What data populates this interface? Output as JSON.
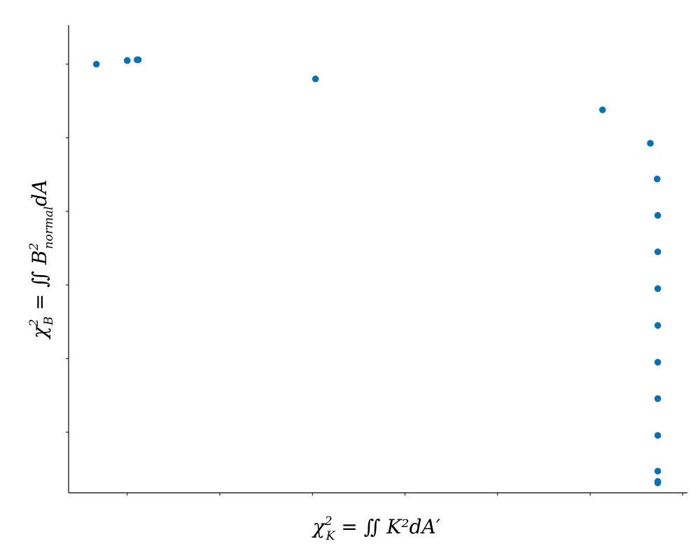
{
  "chart_data": {
    "type": "scatter",
    "title": "",
    "xlabel": "χ²_K = ∬ K² dA′",
    "ylabel": "χ²_B = ∬ B²_normal dA",
    "xlabel_parts": {
      "base": "χ",
      "sup": "2",
      "sub": "K",
      "rest": " = ∬ K²dA′"
    },
    "ylabel_parts": {
      "base": "χ",
      "sup": "2",
      "sub": "B",
      "rest1": " = ∬ B",
      "rest_sup": "2",
      "rest_sub": "normal",
      "rest2": "dA"
    },
    "x_ticks": [
      0.2,
      0.5,
      0.8,
      1.1,
      1.4,
      1.7,
      2.0
    ],
    "y_ticks": [
      0.2,
      0.4,
      0.6,
      0.8,
      1.0,
      1.2
    ],
    "x_tick_labels_shown": false,
    "y_tick_labels_shown": false,
    "xlim": [
      0.01,
      2.015
    ],
    "ylim": [
      0.035,
      1.306
    ],
    "grid": false,
    "marker_color": "#0072B2",
    "series": [
      {
        "points": [
          {
            "x": 0.1,
            "y": 1.2
          },
          {
            "x": 0.2,
            "y": 1.21
          },
          {
            "x": 0.232,
            "y": 1.212
          },
          {
            "x": 0.236,
            "y": 1.212
          },
          {
            "x": 0.81,
            "y": 1.16
          },
          {
            "x": 1.74,
            "y": 1.076
          },
          {
            "x": 1.895,
            "y": 0.985
          },
          {
            "x": 1.917,
            "y": 0.888
          },
          {
            "x": 1.919,
            "y": 0.789
          },
          {
            "x": 1.919,
            "y": 0.69
          },
          {
            "x": 1.919,
            "y": 0.59
          },
          {
            "x": 1.919,
            "y": 0.49
          },
          {
            "x": 1.919,
            "y": 0.39
          },
          {
            "x": 1.919,
            "y": 0.291
          },
          {
            "x": 1.919,
            "y": 0.191
          },
          {
            "x": 1.919,
            "y": 0.094
          },
          {
            "x": 1.919,
            "y": 0.066
          },
          {
            "x": 1.919,
            "y": 0.062
          }
        ]
      }
    ]
  }
}
